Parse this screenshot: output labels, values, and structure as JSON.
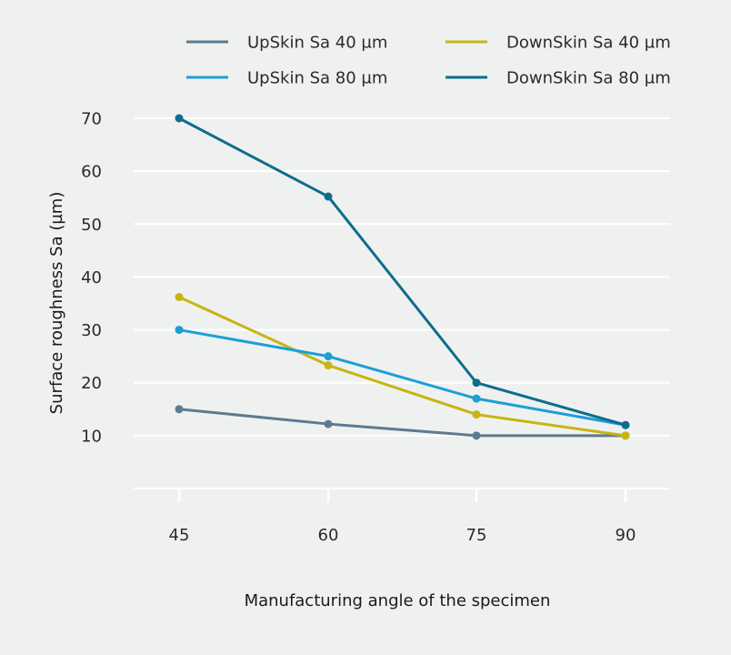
{
  "chart_data": {
    "type": "line",
    "title": "",
    "xlabel": "Manufacturing angle of the specimen",
    "ylabel": "Surface roughness Sa (µm)",
    "categories": [
      "45",
      "60",
      "75",
      "90"
    ],
    "x": [
      45,
      60,
      75,
      90
    ],
    "ylim": [
      0,
      70
    ],
    "yticks": [
      10,
      20,
      30,
      40,
      50,
      60,
      70
    ],
    "grid": true,
    "legend_position": "top",
    "series": [
      {
        "name": "UpSkin Sa 40 µm",
        "color": "#5e7a91",
        "values": [
          15,
          12.2,
          10,
          10
        ]
      },
      {
        "name": "DownSkin Sa 40 µm",
        "color": "#c6b514",
        "values": [
          36.2,
          23.3,
          14,
          10
        ]
      },
      {
        "name": "UpSkin Sa 80 µm",
        "color": "#1b9fd6",
        "values": [
          30,
          25,
          17,
          12
        ]
      },
      {
        "name": "DownSkin Sa 80 µm",
        "color": "#0e6d8c",
        "values": [
          70,
          55.2,
          20,
          12
        ]
      }
    ]
  },
  "colors": {
    "background": "#eff1f1",
    "gridline": "#ffffff"
  }
}
